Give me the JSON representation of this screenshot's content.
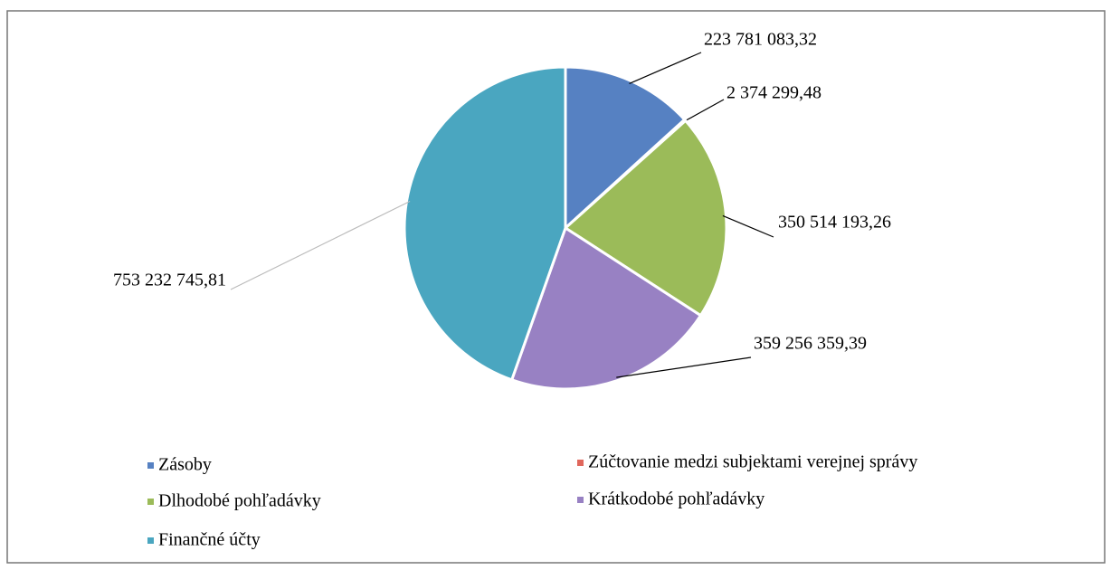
{
  "chart_data": {
    "type": "pie",
    "categories": [
      "Zásoby",
      "Zúčtovanie medzi subjektami verejnej správy",
      "Dlhodobé pohľadávky",
      "Krátkodobé pohľadávky",
      "Finančné účty"
    ],
    "values": [
      223781083.32,
      2374299.48,
      350514193.26,
      359256359.39,
      753232745.81
    ],
    "value_labels": [
      "223 781 083,32",
      "2 374 299,48",
      "350 514 193,26",
      "359 256 359,39",
      "753 232 745,81"
    ],
    "colors": [
      "#5681c2",
      "#e0675c",
      "#9bbb59",
      "#9881c3",
      "#4aa6c0"
    ]
  }
}
